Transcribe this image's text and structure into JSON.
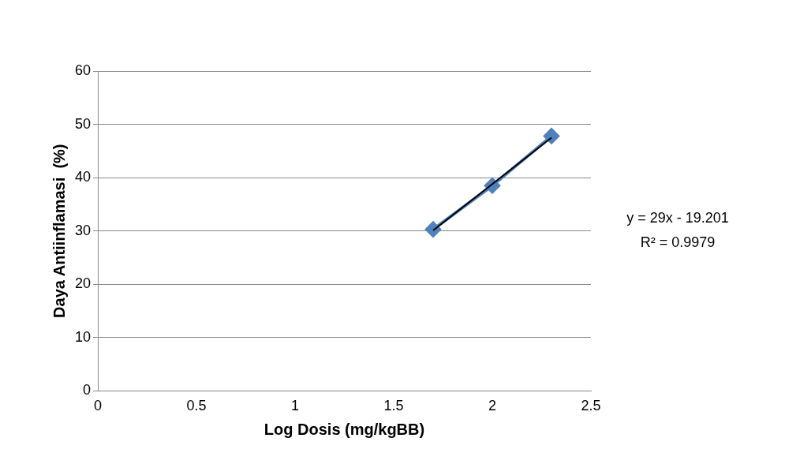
{
  "chart_data": {
    "type": "line",
    "xlabel": "Log Dosis (mg/kgBB)",
    "ylabel": "Daya Antiinflamasi  (%)",
    "x": [
      1.7,
      2.0,
      2.3
    ],
    "series": [
      {
        "color": "#4f81bd",
        "values": [
          30.3,
          38.5,
          47.8
        ]
      },
      {
        "type": "line",
        "color": "#000000",
        "x": [
          1.7,
          2.3
        ],
        "values": [
          30.1,
          47.5
        ],
        "marker": "none"
      }
    ],
    "xlim": [
      0,
      2.5
    ],
    "xticks": [
      0,
      0.5,
      1,
      1.5,
      2,
      2.5
    ],
    "ylim": [
      0,
      60
    ],
    "yticks": [
      0,
      10,
      20,
      30,
      40,
      50,
      60
    ],
    "grid": "y",
    "legend": false,
    "marker": "diamond",
    "line_style": "solid",
    "annotations": [
      "y = 29x - 19.201",
      "R² = 0.9979"
    ]
  }
}
